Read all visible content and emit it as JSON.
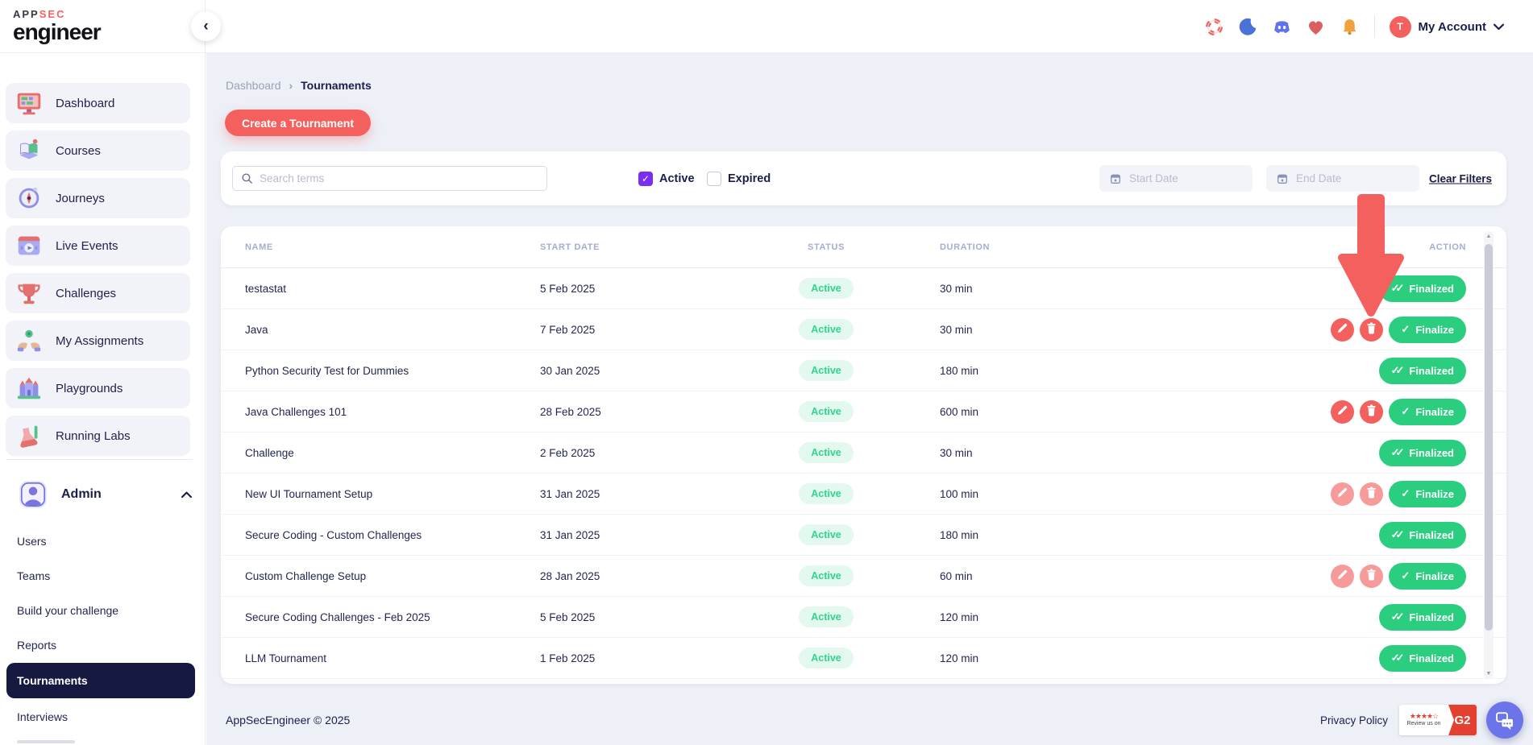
{
  "topbar": {
    "logo": {
      "top_dark": "APP",
      "top_accent": "SEC",
      "bottom": "engineer"
    },
    "collapse_glyph": "‹",
    "icons": [
      {
        "name": "lifebuoy"
      },
      {
        "name": "moon"
      },
      {
        "name": "discord"
      },
      {
        "name": "heart"
      },
      {
        "name": "bell"
      }
    ],
    "account": {
      "initial": "T",
      "label": "My Account"
    }
  },
  "sidebar": {
    "items": [
      {
        "label": "Dashboard",
        "icon": "dashboard"
      },
      {
        "label": "Courses",
        "icon": "courses"
      },
      {
        "label": "Journeys",
        "icon": "journeys"
      },
      {
        "label": "Live Events",
        "icon": "live-events"
      },
      {
        "label": "Challenges",
        "icon": "challenges"
      },
      {
        "label": "My Assignments",
        "icon": "assignments"
      },
      {
        "label": "Playgrounds",
        "icon": "playgrounds"
      },
      {
        "label": "Running Labs",
        "icon": "labs"
      }
    ],
    "admin": {
      "label": "Admin",
      "items": [
        "Users",
        "Teams",
        "Build your challenge",
        "Reports",
        "Tournaments",
        "Interviews"
      ],
      "active_item": "Tournaments"
    }
  },
  "main": {
    "breadcrumb": {
      "parent": "Dashboard",
      "current": "Tournaments"
    },
    "create_button": "Create a Tournament",
    "filters": {
      "search_placeholder": "Search terms",
      "active_label": "Active",
      "active_checked": true,
      "expired_label": "Expired",
      "expired_checked": false,
      "start_date_placeholder": "Start Date",
      "end_date_placeholder": "End Date",
      "clear_label": "Clear Filters"
    },
    "table": {
      "columns": [
        "NAME",
        "START DATE",
        "STATUS",
        "DURATION",
        "ACTION"
      ],
      "rows": [
        {
          "name": "testastat",
          "start_date": "5 Feb 2025",
          "status": "Active",
          "duration": "30 min",
          "can_edit": false,
          "action_label": "Finalized",
          "action_done": true,
          "buttons_variant": "solid"
        },
        {
          "name": "Java",
          "start_date": "7 Feb 2025",
          "status": "Active",
          "duration": "30 min",
          "can_edit": true,
          "action_label": "Finalize",
          "action_done": false,
          "buttons_variant": "solid"
        },
        {
          "name": "Python Security Test for Dummies",
          "start_date": "30 Jan 2025",
          "status": "Active",
          "duration": "180 min",
          "can_edit": false,
          "action_label": "Finalized",
          "action_done": true,
          "buttons_variant": "solid"
        },
        {
          "name": "Java Challenges 101",
          "start_date": "28 Feb 2025",
          "status": "Active",
          "duration": "600 min",
          "can_edit": true,
          "action_label": "Finalize",
          "action_done": false,
          "buttons_variant": "solid"
        },
        {
          "name": "Challenge",
          "start_date": "2 Feb 2025",
          "status": "Active",
          "duration": "30 min",
          "can_edit": false,
          "action_label": "Finalized",
          "action_done": true,
          "buttons_variant": "solid"
        },
        {
          "name": "New UI Tournament Setup",
          "start_date": "31 Jan 2025",
          "status": "Active",
          "duration": "100 min",
          "can_edit": true,
          "action_label": "Finalize",
          "action_done": false,
          "buttons_variant": "light"
        },
        {
          "name": "Secure Coding - Custom Challenges",
          "start_date": "31 Jan 2025",
          "status": "Active",
          "duration": "180 min",
          "can_edit": false,
          "action_label": "Finalized",
          "action_done": true,
          "buttons_variant": "solid"
        },
        {
          "name": "Custom Challenge Setup",
          "start_date": "28 Jan 2025",
          "status": "Active",
          "duration": "60 min",
          "can_edit": true,
          "action_label": "Finalize",
          "action_done": false,
          "buttons_variant": "light"
        },
        {
          "name": "Secure Coding Challenges - Feb 2025",
          "start_date": "5 Feb 2025",
          "status": "Active",
          "duration": "120 min",
          "can_edit": false,
          "action_label": "Finalized",
          "action_done": true,
          "buttons_variant": "solid"
        },
        {
          "name": "LLM Tournament",
          "start_date": "1 Feb 2025",
          "status": "Active",
          "duration": "120 min",
          "can_edit": false,
          "action_label": "Finalized",
          "action_done": true,
          "buttons_variant": "solid"
        }
      ]
    }
  },
  "footer": {
    "copyright": "AppSecEngineer © 2025",
    "privacy_link": "Privacy Policy",
    "g2_badge": {
      "stars": "★★★★☆",
      "review_text": "Review us on",
      "logo_text": "G2"
    }
  },
  "annotation": {
    "type": "arrow-down",
    "color": "#F4605E",
    "points_to": "delete button of row Java"
  },
  "colors": {
    "accent_red": "#F4605E",
    "green": "#2BCE7F",
    "purple_check": "#7A2FF0",
    "navy": "#1B1E4B",
    "status_bg": "#E3F8EE",
    "status_text": "#2FD68C",
    "main_bg": "#EDF0F7"
  }
}
